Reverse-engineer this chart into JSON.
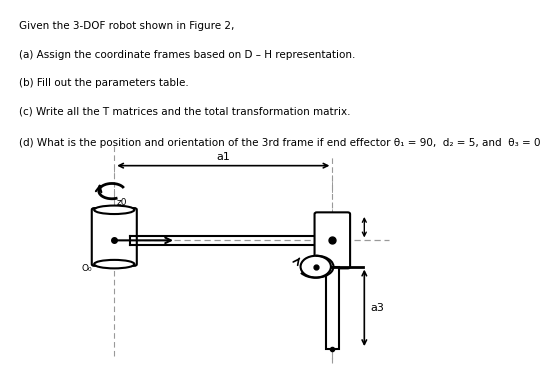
{
  "title_lines": [
    "Given the 3-DOF robot shown in Figure 2,",
    "(a) Assign the coordinate frames based on D – H representation.",
    "(b) Fill out the parameters table.",
    "(c) Write all the T matrices and the total transformation matrix.",
    "(d) What is the position and orientation of the 3rd frame if end effector θ₁ = 90,  d₂ = 5, and  θ₃ = 0"
  ],
  "bg_color": "#ffffff",
  "text_color": "#000000",
  "robot_color": "#000000",
  "dashed_color": "#999999"
}
